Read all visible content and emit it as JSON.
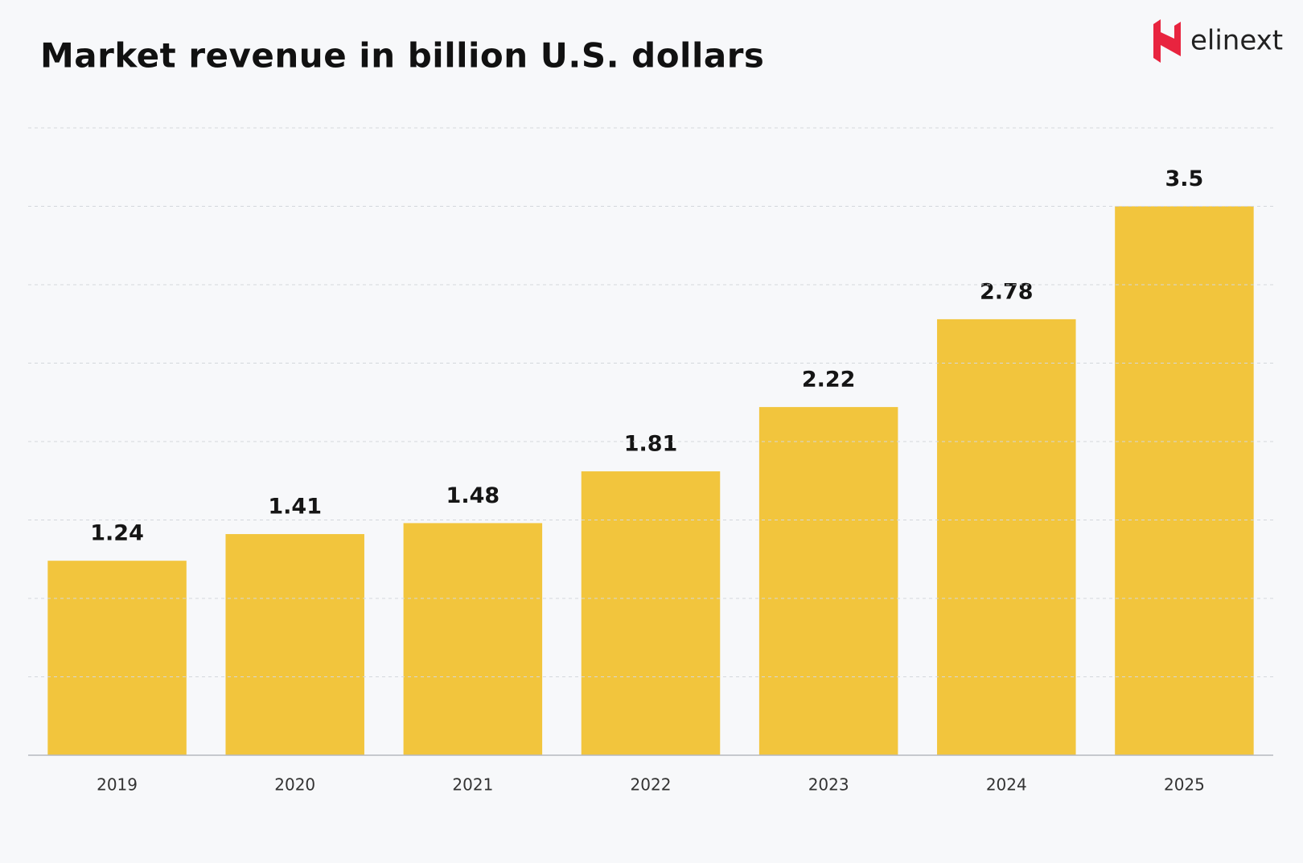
{
  "logo_text": "elinext",
  "chart_data": {
    "type": "bar",
    "title": "Market revenue in billion U.S. dollars",
    "categories": [
      "2019",
      "2020",
      "2021",
      "2022",
      "2023",
      "2024",
      "2025"
    ],
    "values": [
      1.24,
      1.41,
      1.48,
      1.81,
      2.22,
      2.78,
      3.5
    ],
    "color": "#f2c53d",
    "ylim": [
      0,
      4
    ],
    "yticks": [
      0,
      0.5,
      1,
      1.5,
      2,
      2.5,
      3,
      3.5,
      4
    ],
    "grid": true
  }
}
